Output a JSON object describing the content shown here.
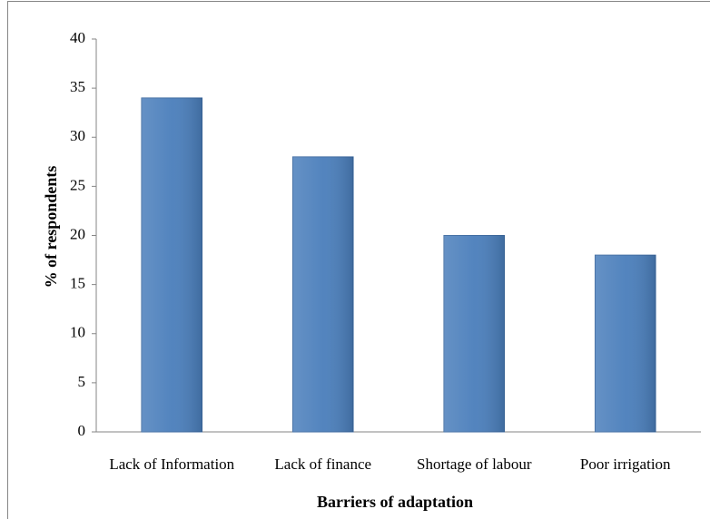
{
  "chart_data": {
    "type": "bar",
    "x_label": "Barriers of adaptation",
    "y_label": "% of respondents",
    "categories": [
      "Lack of Information",
      "Lack of finance",
      "Shortage of labour",
      "Poor irrigation"
    ],
    "values": [
      34,
      28,
      20,
      18
    ],
    "color": "#4a7ebb",
    "ylim": [
      0,
      40
    ],
    "yticks": [
      0,
      5,
      10,
      15,
      20,
      25,
      30,
      35,
      40
    ],
    "grid": false
  }
}
